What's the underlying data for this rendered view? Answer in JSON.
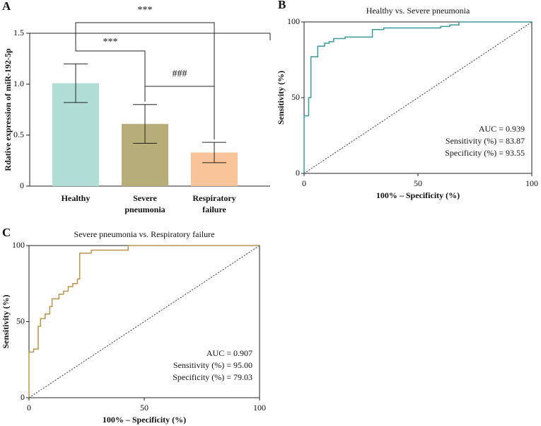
{
  "chart_data": [
    {
      "type": "bar",
      "panel_label": "A",
      "categories": [
        "Healthy",
        "Severe pneumonia",
        "Respiratory failure"
      ],
      "values": [
        1.01,
        0.61,
        0.33
      ],
      "errors": [
        0.19,
        0.19,
        0.1
      ],
      "colors": [
        "#b0ddd6",
        "#b6ad78",
        "#f9c49a"
      ],
      "ylabel": "Rdative expression of miR-192-5p",
      "ylim": [
        0,
        1.5
      ],
      "yticks": [
        0,
        {
          "value": 0.5,
          "label": "0.5"
        },
        {
          "value": 1.0,
          "label": "1.0"
        },
        {
          "value": 1.5,
          "label": "1.5"
        }
      ],
      "annotations": [
        "***",
        "***",
        "###"
      ]
    },
    {
      "type": "line",
      "panel_label": "B",
      "title": "Healthy vs. Severe pneumonia",
      "x": [
        0,
        0,
        2,
        2,
        3,
        3,
        6,
        6,
        9,
        9,
        11,
        11,
        13,
        13,
        18,
        18,
        30,
        30,
        35,
        35,
        60,
        60,
        64,
        64,
        68,
        68,
        100
      ],
      "values": [
        0,
        38,
        38,
        50,
        50,
        77,
        77,
        84,
        84,
        86,
        86,
        87,
        87,
        89,
        89,
        90,
        90,
        95,
        95,
        96,
        96,
        97,
        97,
        98,
        98,
        100,
        100
      ],
      "color": "#3a9a9a",
      "xlabel": "100% – Specificity (%)",
      "ylabel": "Sensitivity (%)",
      "xlim": [
        0,
        100
      ],
      "ylim": [
        0,
        100
      ],
      "xticks": [
        0,
        50,
        100
      ],
      "yticks": [
        0,
        50,
        100
      ],
      "annotations": [
        "AUC = 0.939",
        "Sensitivity (%) = 83.87",
        "Specificity (%) = 93.55"
      ]
    },
    {
      "type": "line",
      "panel_label": "C",
      "title": "Severe pneumonia vs. Respiratory failure",
      "x": [
        0,
        0,
        2,
        2,
        4,
        4,
        5,
        5,
        7,
        7,
        9,
        9,
        10,
        10,
        13,
        13,
        15,
        15,
        17,
        17,
        19,
        19,
        21,
        21,
        22,
        22,
        27,
        27,
        43,
        43,
        100
      ],
      "values": [
        0,
        30,
        30,
        32,
        32,
        47,
        47,
        52,
        52,
        55,
        55,
        60,
        60,
        65,
        65,
        68,
        68,
        70,
        70,
        73,
        73,
        75,
        75,
        78,
        78,
        95,
        95,
        97,
        97,
        100,
        100
      ],
      "color": "#b8954a",
      "xlabel": "100% – Specificity (%)",
      "ylabel": "Sensitivity (%)",
      "xlim": [
        0,
        100
      ],
      "ylim": [
        0,
        100
      ],
      "xticks": [
        0,
        50,
        100
      ],
      "yticks": [
        0,
        50,
        100
      ],
      "annotations": [
        "AUC = 0.907",
        "Sensitivity (%) = 95.00",
        "Specificity (%) = 79.03"
      ]
    }
  ]
}
